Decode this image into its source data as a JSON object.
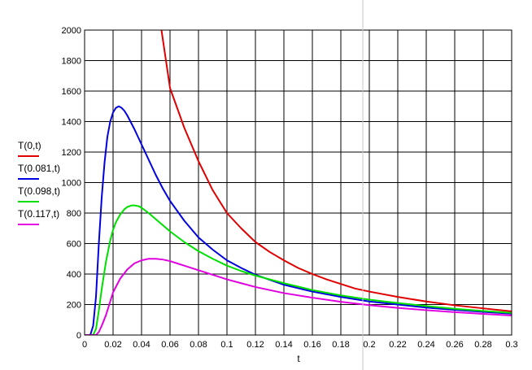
{
  "chart_data": {
    "type": "line",
    "title": "",
    "xlabel": "t",
    "ylabel": "",
    "xlim": [
      0,
      0.3
    ],
    "ylim": [
      0,
      2000
    ],
    "grid": true,
    "legend_position": "left",
    "x_ticks": [
      "0",
      "0.02",
      "0.04",
      "0.06",
      "0.08",
      "0.1",
      "0.12",
      "0.14",
      "0.16",
      "0.18",
      "0.2",
      "0.22",
      "0.24",
      "0.26",
      "0.28",
      "0.3"
    ],
    "y_ticks": [
      "0",
      "200",
      "400",
      "600",
      "800",
      "1000",
      "1200",
      "1400",
      "1600",
      "1800",
      "2000"
    ],
    "series": [
      {
        "name": "T(0,t)",
        "color": "#e00000",
        "x": [
          0.054,
          0.06,
          0.07,
          0.08,
          0.09,
          0.1,
          0.11,
          0.12,
          0.13,
          0.14,
          0.15,
          0.16,
          0.17,
          0.18,
          0.19,
          0.2,
          0.22,
          0.24,
          0.26,
          0.28,
          0.3
        ],
        "y": [
          2000,
          1620,
          1360,
          1140,
          950,
          800,
          700,
          610,
          545,
          490,
          440,
          400,
          365,
          335,
          305,
          285,
          250,
          220,
          195,
          175,
          155
        ]
      },
      {
        "name": "T(0.081,t)",
        "color": "#0000e0",
        "x": [
          0,
          0.004,
          0.006,
          0.008,
          0.01,
          0.012,
          0.014,
          0.016,
          0.018,
          0.02,
          0.022,
          0.024,
          0.026,
          0.028,
          0.03,
          0.035,
          0.04,
          0.045,
          0.05,
          0.055,
          0.06,
          0.07,
          0.08,
          0.09,
          0.1,
          0.11,
          0.12,
          0.14,
          0.16,
          0.18,
          0.2,
          0.22,
          0.24,
          0.26,
          0.28,
          0.3
        ],
        "y": [
          0,
          0,
          60,
          250,
          600,
          900,
          1130,
          1300,
          1400,
          1460,
          1490,
          1500,
          1490,
          1470,
          1440,
          1350,
          1250,
          1150,
          1050,
          960,
          880,
          750,
          640,
          560,
          490,
          440,
          395,
          330,
          285,
          250,
          220,
          200,
          180,
          165,
          152,
          140
        ]
      },
      {
        "name": "T(0.098,t)",
        "color": "#00e000",
        "x": [
          0,
          0.006,
          0.008,
          0.01,
          0.012,
          0.015,
          0.018,
          0.02,
          0.022,
          0.025,
          0.028,
          0.03,
          0.033,
          0.035,
          0.038,
          0.04,
          0.045,
          0.05,
          0.055,
          0.06,
          0.07,
          0.08,
          0.09,
          0.1,
          0.11,
          0.12,
          0.14,
          0.16,
          0.18,
          0.2,
          0.22,
          0.24,
          0.26,
          0.28,
          0.3
        ],
        "y": [
          0,
          0,
          40,
          160,
          300,
          480,
          620,
          690,
          740,
          790,
          825,
          840,
          850,
          850,
          845,
          835,
          800,
          760,
          720,
          680,
          610,
          550,
          500,
          455,
          420,
          390,
          340,
          295,
          260,
          232,
          210,
          190,
          172,
          158,
          145
        ]
      },
      {
        "name": "T(0.117,t)",
        "color": "#e000e0",
        "x": [
          0,
          0.008,
          0.01,
          0.012,
          0.015,
          0.018,
          0.02,
          0.025,
          0.03,
          0.035,
          0.04,
          0.045,
          0.05,
          0.055,
          0.06,
          0.065,
          0.07,
          0.08,
          0.09,
          0.1,
          0.11,
          0.12,
          0.14,
          0.16,
          0.18,
          0.2,
          0.22,
          0.24,
          0.26,
          0.28,
          0.3
        ],
        "y": [
          0,
          0,
          20,
          60,
          130,
          220,
          280,
          370,
          430,
          470,
          490,
          500,
          500,
          495,
          485,
          470,
          455,
          425,
          395,
          365,
          340,
          315,
          275,
          245,
          218,
          196,
          178,
          163,
          150,
          139,
          128
        ]
      }
    ]
  }
}
